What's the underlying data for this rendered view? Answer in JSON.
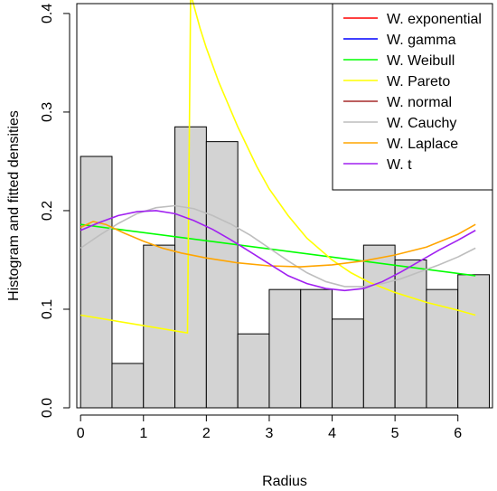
{
  "chart_data": {
    "type": "histogram",
    "title": "",
    "xlabel": "Radius",
    "ylabel": "Histogram and fitted densities",
    "xlim": [
      -0.06,
      6.55
    ],
    "ylim": [
      0.0,
      0.41
    ],
    "xticks": [
      0,
      1,
      2,
      3,
      4,
      5,
      6
    ],
    "yticks": [
      0.0,
      0.1,
      0.2,
      0.3,
      0.4
    ],
    "xtick_labels": [
      "0",
      "1",
      "2",
      "3",
      "4",
      "5",
      "6"
    ],
    "ytick_labels": [
      "0.0",
      "0.1",
      "0.2",
      "0.3",
      "0.4"
    ],
    "histogram": {
      "breaks": [
        0,
        0.5,
        1.0,
        1.5,
        2.0,
        2.5,
        3.0,
        3.5,
        4.0,
        4.5,
        5.0,
        5.5,
        6.0,
        6.5
      ],
      "density": [
        0.255,
        0.045,
        0.165,
        0.285,
        0.27,
        0.075,
        0.12,
        0.12,
        0.09,
        0.165,
        0.15,
        0.12,
        0.135
      ],
      "fill": "#d3d3d3",
      "stroke": "#000000"
    },
    "legend_position": "top-right",
    "series": [
      {
        "name": "W. exponential",
        "color": "#ff0000",
        "x": [],
        "y": []
      },
      {
        "name": "W. gamma",
        "color": "#0000ff",
        "x": [],
        "y": []
      },
      {
        "name": "W. Weibull",
        "color": "#00ff00",
        "x": [
          0,
          6.28
        ],
        "y": [
          0.186,
          0.134
        ]
      },
      {
        "name": "W. Pareto",
        "color": "#ffff00",
        "x": [
          0,
          1.7,
          1.7,
          1.75,
          1.9,
          2.0,
          2.2,
          2.5,
          2.8,
          3.0,
          3.3,
          3.6,
          4.0,
          4.3,
          4.6,
          5.0,
          5.5,
          6.0,
          6.28
        ],
        "y": [
          0.094,
          0.076,
          0.076,
          0.42,
          0.385,
          0.365,
          0.33,
          0.285,
          0.245,
          0.222,
          0.195,
          0.172,
          0.15,
          0.137,
          0.127,
          0.117,
          0.107,
          0.099,
          0.094
        ]
      },
      {
        "name": "W. normal",
        "color": "#a52a2a",
        "x": [],
        "y": []
      },
      {
        "name": "W. Cauchy",
        "color": "#bebebe",
        "x": [
          0,
          0.3,
          0.6,
          0.9,
          1.2,
          1.5,
          1.8,
          2.1,
          2.4,
          2.7,
          3.0,
          3.3,
          3.6,
          3.9,
          4.2,
          4.5,
          4.8,
          5.1,
          5.4,
          5.7,
          6.0,
          6.28
        ],
        "y": [
          0.162,
          0.175,
          0.187,
          0.197,
          0.203,
          0.205,
          0.202,
          0.195,
          0.186,
          0.175,
          0.162,
          0.149,
          0.137,
          0.128,
          0.123,
          0.123,
          0.126,
          0.131,
          0.138,
          0.145,
          0.153,
          0.162
        ]
      },
      {
        "name": "W. Laplace",
        "color": "#ffa500",
        "x": [
          0,
          0.2,
          0.4,
          0.7,
          1.0,
          1.3,
          1.6,
          2.0,
          2.5,
          3.0,
          3.5,
          4.0,
          4.5,
          5.0,
          5.5,
          6.0,
          6.28
        ],
        "y": [
          0.183,
          0.189,
          0.186,
          0.177,
          0.169,
          0.162,
          0.157,
          0.152,
          0.147,
          0.144,
          0.143,
          0.145,
          0.149,
          0.155,
          0.163,
          0.176,
          0.186
        ]
      },
      {
        "name": "W. t",
        "color": "#a020f0",
        "x": [
          0,
          0.3,
          0.6,
          0.9,
          1.2,
          1.5,
          1.8,
          2.1,
          2.4,
          2.7,
          3.0,
          3.3,
          3.6,
          3.9,
          4.2,
          4.5,
          4.8,
          5.1,
          5.4,
          5.7,
          6.0,
          6.28
        ],
        "y": [
          0.18,
          0.188,
          0.195,
          0.199,
          0.2,
          0.197,
          0.19,
          0.181,
          0.17,
          0.158,
          0.146,
          0.134,
          0.126,
          0.121,
          0.119,
          0.121,
          0.128,
          0.138,
          0.149,
          0.16,
          0.17,
          0.18
        ]
      }
    ]
  }
}
